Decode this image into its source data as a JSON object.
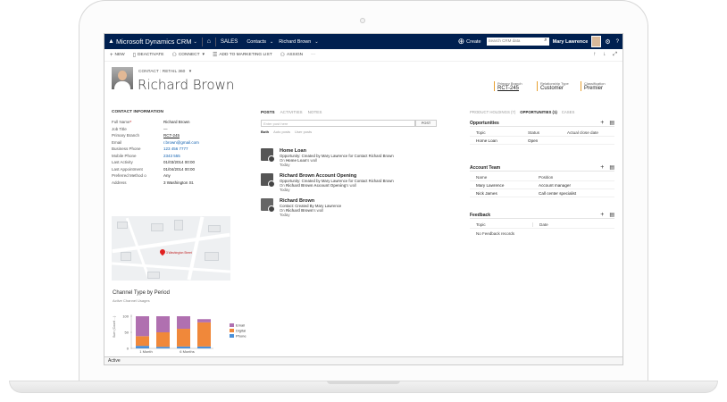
{
  "nav": {
    "app_title": "Microsoft Dynamics CRM",
    "area": "SALES",
    "entity": "Contacts",
    "record": "Richard Brown",
    "create": "Create",
    "search_placeholder": "Search CRM data",
    "user": "Mary Lawrence"
  },
  "commands": {
    "new": "NEW",
    "deactivate": "DEACTIVATE",
    "connect": "CONNECT",
    "add_to_list": "ADD TO MARKETING LIST",
    "assign": "ASSIGN",
    "more": "···"
  },
  "record": {
    "type_label": "CONTACT : RETAIL 360",
    "name": "Richard Brown",
    "header_fields": [
      {
        "label": "Primary Branch",
        "value": "RCT-245"
      },
      {
        "label": "Relationship Type",
        "value": "Customer"
      },
      {
        "label": "Classification",
        "value": "Premier"
      }
    ]
  },
  "contact_info": {
    "title": "CONTACT INFORMATION",
    "fields": [
      {
        "label": "Full Name",
        "value": "Richard Brown"
      },
      {
        "label": "Job Title",
        "value": "—"
      },
      {
        "label": "Primary Branch",
        "value": "RCT-245"
      },
      {
        "label": "Email",
        "value": "r.brown@gmail.com"
      },
      {
        "label": "Business Phone",
        "value": "123 456 7777"
      },
      {
        "label": "Mobile Phone",
        "value": "2343 555"
      },
      {
        "label": "Last Activity",
        "value": "01/03/2014   00:00"
      },
      {
        "label": "Last Appointment",
        "value": "01/04/2014   00:00"
      },
      {
        "label": "Preferred Method o",
        "value": "Any"
      },
      {
        "label": "Address",
        "value": "3 Washington St."
      }
    ],
    "map_pin_label": "3 Washington Street"
  },
  "chart": {
    "title": "Channel Type by Period",
    "subtitle": "Active Channel Usages",
    "ylabel": "Sum (Count ...)"
  },
  "chart_data": {
    "type": "bar",
    "stacked": true,
    "categories": [
      "1 Month",
      "",
      "6 Months",
      ""
    ],
    "series": [
      {
        "name": "Phone",
        "color": "#4a90d9",
        "values": [
          8,
          5,
          6,
          6
        ]
      },
      {
        "name": "Digital",
        "color": "#f0883a",
        "values": [
          30,
          45,
          55,
          75
        ]
      },
      {
        "name": "Email",
        "color": "#b070b0",
        "values": [
          62,
          50,
          39,
          10
        ]
      }
    ],
    "yticks": [
      "100",
      "50",
      "0"
    ],
    "ylim": [
      0,
      100
    ],
    "legend_position": "right"
  },
  "posts": {
    "tabs": [
      "POSTS",
      "ACTIVITIES",
      "NOTES"
    ],
    "input_placeholder": "Enter post here",
    "post_button": "POST",
    "filters": [
      "Both",
      "Auto posts",
      "User posts"
    ],
    "items": [
      {
        "title": "Home Loan",
        "line": "Opportunity: Created by Mary Lawrence for Contact Richard Brown",
        "on_prefix": "On",
        "on_link": "Home Loan",
        "on_suffix": "'s wall",
        "time": "Today"
      },
      {
        "title": "Richard Brown Account Opening",
        "line": "Opportunity: Created by Mary Lawrence for Contact Richard Brown",
        "on_prefix": "On",
        "on_link": "Richard Brown Account Opening",
        "on_suffix": "'s wall",
        "time": "Today"
      },
      {
        "title": "Richard Brown",
        "line": "Contact: Created By Mary Lawrence",
        "on_prefix": "On",
        "on_link": "Richard Brown",
        "on_suffix": "'s wall",
        "time": "Today"
      }
    ]
  },
  "related": {
    "tabs": [
      "PRODUCT HOLDINGS (7)",
      "OPPORTUNITIES (1)",
      "CASES"
    ],
    "opportunities": {
      "title": "Opportunities",
      "columns": [
        "Topic",
        "Status",
        "Actual close date"
      ],
      "rows": [
        [
          "Home Loan",
          "Open",
          ""
        ]
      ]
    },
    "account_team": {
      "title": "Account Team",
      "columns": [
        "Name",
        "Position"
      ],
      "rows": [
        [
          "Mary Lawrence",
          "Account manager"
        ],
        [
          "Nick James",
          "Call center specialist"
        ]
      ]
    },
    "feedback": {
      "title": "Feedback",
      "columns": [
        "Topic",
        "Date"
      ],
      "empty": "No Feedback records"
    }
  },
  "status": "Active"
}
